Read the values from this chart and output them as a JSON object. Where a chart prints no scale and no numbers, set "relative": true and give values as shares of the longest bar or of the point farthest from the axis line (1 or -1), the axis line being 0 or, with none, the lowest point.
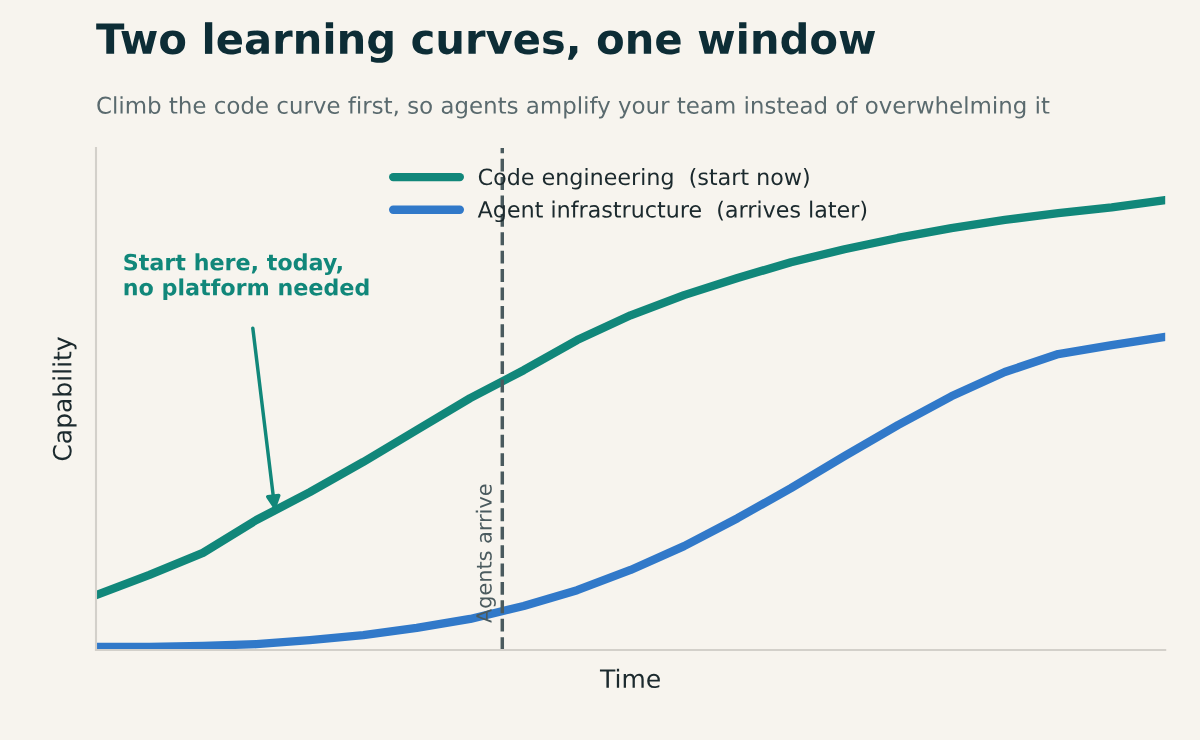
{
  "chart_data": {
    "type": "line",
    "title": "Two learning curves, one window",
    "subtitle": "Climb the code curve first, so agents amplify your team instead of overwhelming it",
    "xlabel": "Time",
    "ylabel": "Capability",
    "relative": true,
    "categories": [
      null,
      null,
      null,
      null,
      null,
      null,
      null,
      null,
      null,
      null,
      null,
      null,
      null,
      null,
      null,
      null,
      null,
      null,
      null,
      null,
      null
    ],
    "series": [
      {
        "name": "Code engineering  (start now)",
        "color": "#11877a",
        "values": [
          0.122,
          0.167,
          0.216,
          0.289,
          0.351,
          0.418,
          0.489,
          0.56,
          0.622,
          0.689,
          0.744,
          0.789,
          0.827,
          0.862,
          0.891,
          0.916,
          0.938,
          0.956,
          0.971,
          0.984,
          1.0
        ]
      },
      {
        "name": "Agent infrastructure  (arrives later)",
        "color": "#3179c9",
        "values": [
          0.007,
          0.007,
          0.009,
          0.013,
          0.022,
          0.033,
          0.049,
          0.069,
          0.098,
          0.133,
          0.178,
          0.231,
          0.293,
          0.36,
          0.431,
          0.5,
          0.564,
          0.618,
          0.658,
          0.678,
          0.696
        ]
      }
    ],
    "annotations": [
      "Start here, today,\nno platform needed",
      "Agents arrive"
    ],
    "legend": "top",
    "grid": false,
    "marker": "none",
    "line_style": "solid"
  }
}
